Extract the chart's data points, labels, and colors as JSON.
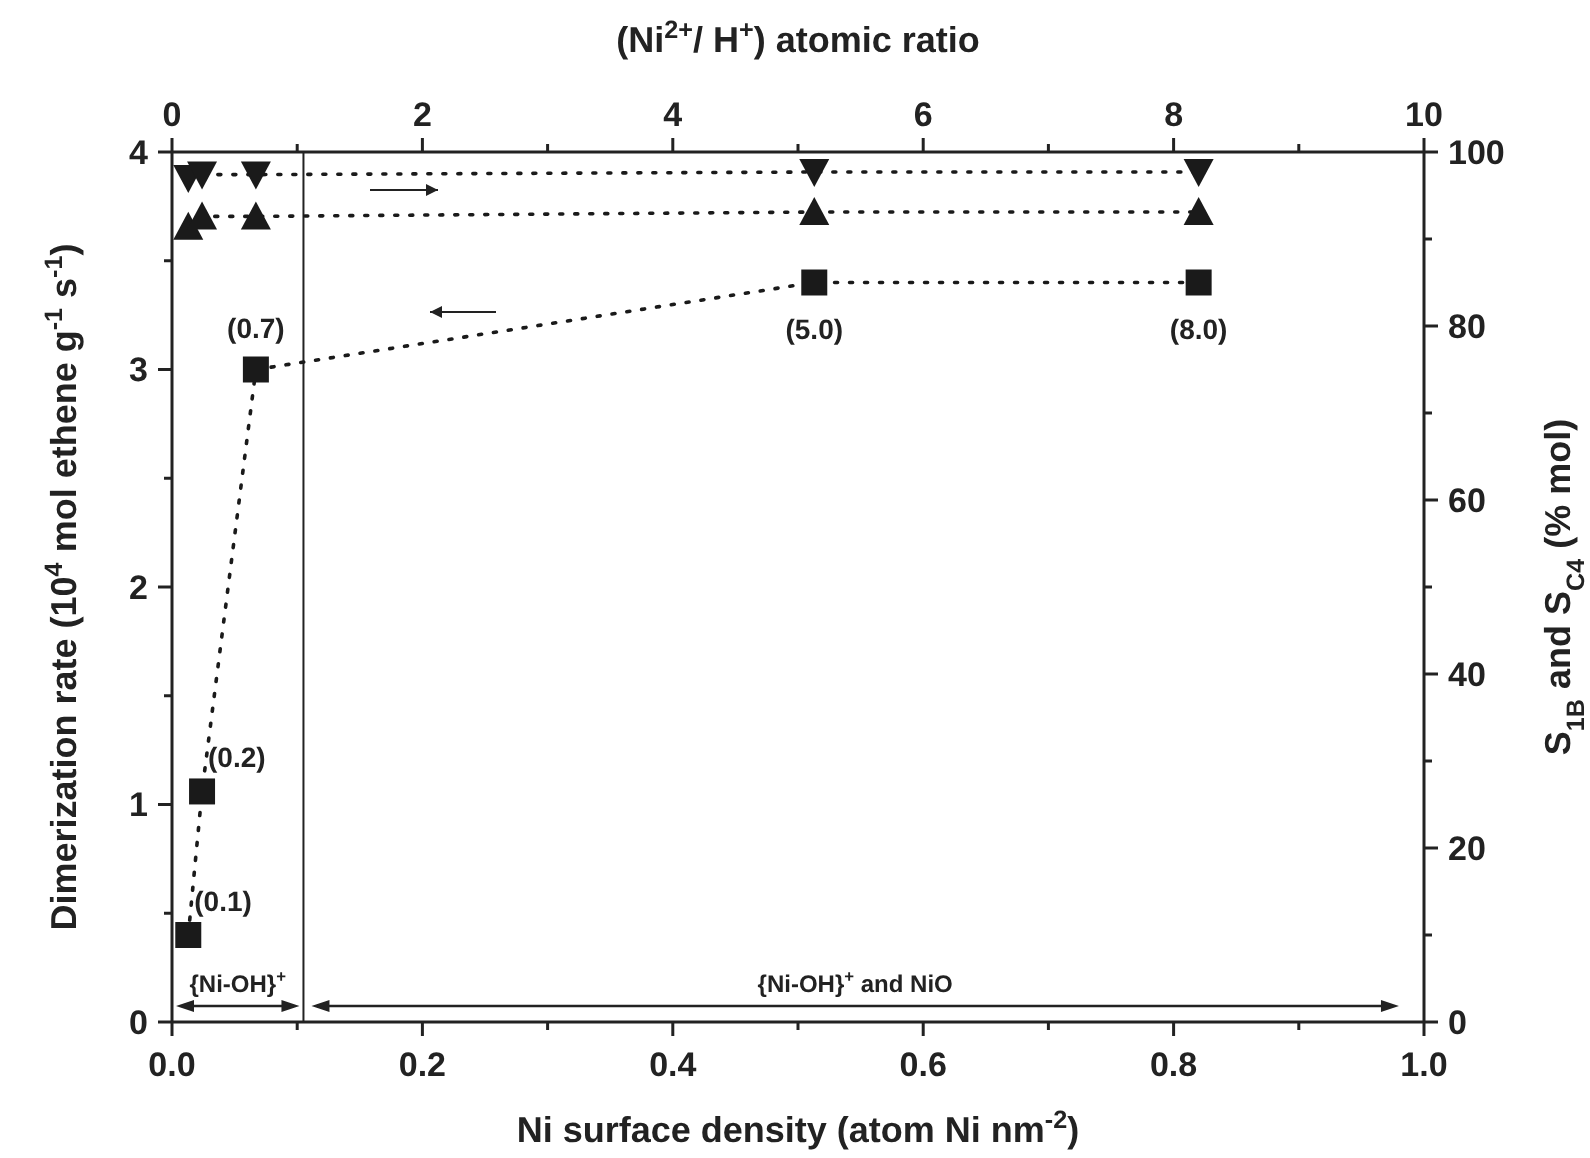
{
  "chart_data": {
    "type": "line",
    "xlabel": "Ni surface density (atom Ni nm$^{-2}$)",
    "ylabel": "Dimerization rate (10$^{4}$ mol ethene g$^{-1}$ s$^{-1}$)",
    "y2label": "S$_{1B}$ and S$_{C4}$ (% mol)",
    "x2label": "(Ni$^{2+}$/ H$^{+}$) atomic ratio",
    "xlim": [
      0,
      1
    ],
    "xticks": [
      {
        "value": 0,
        "label": "0.0"
      },
      {
        "value": 0.1,
        "label": null
      },
      {
        "value": 0.2,
        "label": "0.2"
      },
      {
        "value": 0.3,
        "label": null
      },
      {
        "value": 0.4,
        "label": "0.4"
      },
      {
        "value": 0.5,
        "label": null
      },
      {
        "value": 0.6,
        "label": "0.6"
      },
      {
        "value": 0.7,
        "label": null
      },
      {
        "value": 0.8,
        "label": "0.8"
      },
      {
        "value": 0.9,
        "label": null
      },
      {
        "value": 1,
        "label": "1.0"
      }
    ],
    "x2lim": [
      0,
      10
    ],
    "x2ticks": [
      0,
      {
        "value": 1,
        "label": null
      },
      2,
      {
        "value": 3,
        "label": null
      },
      4,
      {
        "value": 5,
        "label": null
      },
      6,
      {
        "value": 7,
        "label": null
      },
      8,
      {
        "value": 9,
        "label": null
      },
      10
    ],
    "ylim": [
      0,
      4
    ],
    "yticks": [
      0,
      {
        "value": 0.5,
        "label": null
      },
      1,
      {
        "value": 1.5,
        "label": null
      },
      2,
      {
        "value": 2.5,
        "label": null
      },
      3,
      {
        "value": 3.5,
        "label": null
      },
      4
    ],
    "y2lim": [
      0,
      100
    ],
    "y2ticks": [
      0,
      {
        "value": 10,
        "label": null
      },
      20,
      {
        "value": 30,
        "label": null
      },
      40,
      {
        "value": 50,
        "label": null
      },
      60,
      {
        "value": 70,
        "label": null
      },
      80,
      {
        "value": 90,
        "label": null
      },
      100
    ],
    "x": [
      0.013,
      0.024,
      0.067,
      0.513,
      0.82
    ],
    "series": [
      {
        "color": "#1a1a1a",
        "marker": "square",
        "values": [
          0.4,
          1.06,
          3.0,
          3.4,
          3.4
        ]
      },
      {
        "color": "#1a1a1a",
        "marker": "triangle-down",
        "axis": "y2",
        "values": [
          97.0,
          97.4,
          97.4,
          97.7,
          97.7
        ]
      },
      {
        "color": "#1a1a1a",
        "marker": "triangle",
        "axis": "y2",
        "values": [
          91.4,
          92.6,
          92.6,
          93.1,
          93.1
        ]
      }
    ],
    "line_style": "dotted",
    "grid": false,
    "ref_lines": [
      {
        "axis": "x",
        "value": 0.105
      }
    ],
    "annotations": [
      {
        "text": "(0.1)",
        "x": 0.013,
        "y": 0.4
      },
      {
        "text": "(0.2)",
        "x": 0.024,
        "y": 1.06
      },
      {
        "text": "(0.7)",
        "x": 0.067,
        "y": 3.0
      },
      {
        "text": "(5.0)",
        "x": 0.513,
        "y": 3.4
      },
      {
        "text": "(8.0)",
        "x": 0.82,
        "y": 3.4
      },
      "{Ni-OH}$^{+}$",
      "{Ni-OH}$^{+}$ and NiO"
    ]
  }
}
